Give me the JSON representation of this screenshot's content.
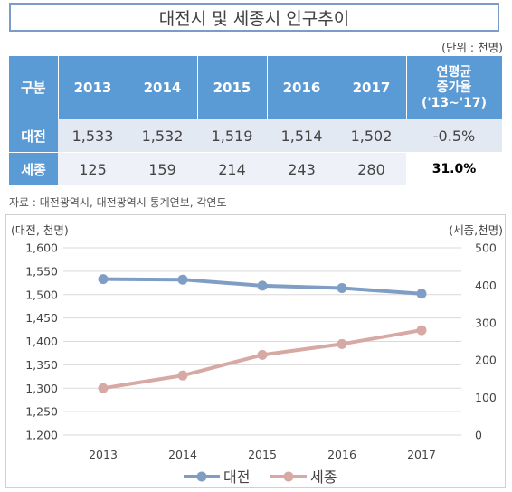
{
  "title": "대전시 및 세종시 인구추이",
  "unit": "(단위 : 천명)",
  "table": {
    "corner": "구분",
    "years": [
      "2013",
      "2014",
      "2015",
      "2016",
      "2017"
    ],
    "growth_header_lines": [
      "연평균",
      "증가율",
      "('13~'17)"
    ],
    "rows": [
      {
        "name": "대전",
        "values": [
          "1,533",
          "1,532",
          "1,519",
          "1,514",
          "1,502"
        ],
        "growth": "-0.5%"
      },
      {
        "name": "세종",
        "values": [
          "125",
          "159",
          "214",
          "243",
          "280"
        ],
        "growth": "31.0%"
      }
    ]
  },
  "source": "자료 : 대전광역시, 대전광역시 통계연보, 각연도",
  "chart_data": {
    "type": "line",
    "x": [
      "2013",
      "2014",
      "2015",
      "2016",
      "2017"
    ],
    "left_axis_label": "(대전, 천명)",
    "right_axis_label": "(세종,천명)",
    "ylim_left": [
      1200,
      1600
    ],
    "ylim_right": [
      0,
      500
    ],
    "left_ticks": [
      "1,200",
      "1,250",
      "1,300",
      "1,350",
      "1,400",
      "1,450",
      "1,500",
      "1,550",
      "1,600"
    ],
    "right_ticks": [
      "0",
      "100",
      "200",
      "300",
      "400",
      "500"
    ],
    "grid": true,
    "legend_position": "bottom",
    "series": [
      {
        "name": "대전",
        "axis": "left",
        "values": [
          1533,
          1532,
          1519,
          1514,
          1502
        ],
        "color": "#7f9ec6"
      },
      {
        "name": "세종",
        "axis": "right",
        "values": [
          125,
          159,
          214,
          243,
          280
        ],
        "color": "#d7a9a4"
      }
    ]
  }
}
